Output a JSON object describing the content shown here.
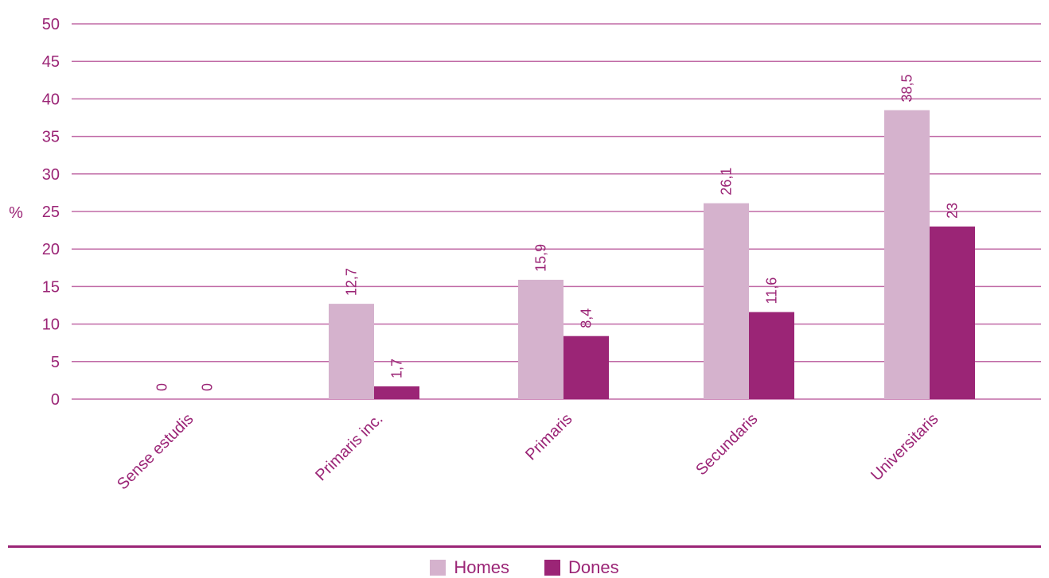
{
  "chart_data": {
    "type": "bar",
    "categories": [
      "Sense estudis",
      "Primaris inc.",
      "Primaris",
      "Secundaris",
      "Universitaris"
    ],
    "series": [
      {
        "name": "Homes",
        "values": [
          0,
          12.7,
          15.9,
          26.1,
          38.5
        ],
        "labels": [
          "0",
          "12,7",
          "15,9",
          "26,1",
          "38,5"
        ]
      },
      {
        "name": "Dones",
        "values": [
          0,
          1.7,
          8.4,
          11.6,
          23
        ],
        "labels": [
          "0",
          "1,7",
          "8,4",
          "11,6",
          "23"
        ]
      }
    ],
    "ylabel": "%",
    "ylim": [
      0,
      50
    ],
    "yticks": [
      "0",
      "5",
      "10",
      "15",
      "20",
      "25",
      "30",
      "35",
      "40",
      "45",
      "50"
    ],
    "grid": true,
    "legend_position": "bottom-center"
  },
  "colors": {
    "homes": "#d5b2cd",
    "dones": "#9b2576",
    "text": "#9b2576",
    "grid": "#c06aa6",
    "rule": "#9b2576"
  }
}
